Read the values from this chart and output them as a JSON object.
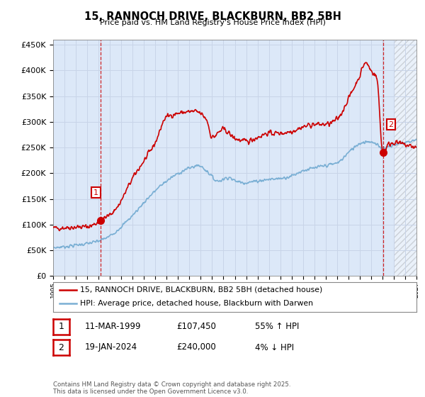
{
  "title": "15, RANNOCH DRIVE, BLACKBURN, BB2 5BH",
  "subtitle": "Price paid vs. HM Land Registry's House Price Index (HPI)",
  "background_color": "#ffffff",
  "grid_color": "#c8d4e8",
  "plot_bg_color": "#dce8f8",
  "red_color": "#cc0000",
  "blue_color": "#7aafd4",
  "ylim": [
    0,
    460000
  ],
  "yticks": [
    0,
    50000,
    100000,
    150000,
    200000,
    250000,
    300000,
    350000,
    400000,
    450000
  ],
  "xlim": [
    1995,
    2027
  ],
  "point1_x": 1999.19,
  "point1_y": 107450,
  "point2_x": 2024.05,
  "point2_y": 240000,
  "legend_line1": "15, RANNOCH DRIVE, BLACKBURN, BB2 5BH (detached house)",
  "legend_line2": "HPI: Average price, detached house, Blackburn with Darwen",
  "annotation1_label": "1",
  "annotation1_date": "11-MAR-1999",
  "annotation1_price": "£107,450",
  "annotation1_hpi": "55% ↑ HPI",
  "annotation2_label": "2",
  "annotation2_date": "19-JAN-2024",
  "annotation2_price": "£240,000",
  "annotation2_hpi": "4% ↓ HPI",
  "footer": "Contains HM Land Registry data © Crown copyright and database right 2025.\nThis data is licensed under the Open Government Licence v3.0.",
  "hatch_start": 2025.0
}
